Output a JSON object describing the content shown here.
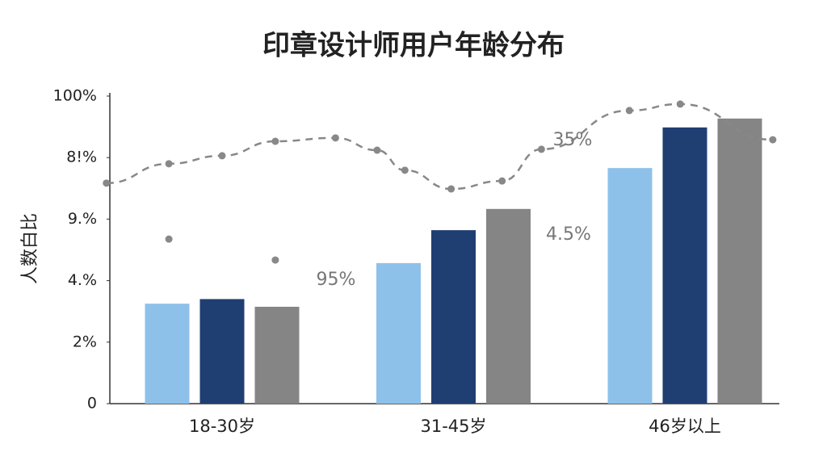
{
  "chart_data": {
    "type": "bar",
    "title": "印章设计师用户年龄分布",
    "y_label": "人数白比",
    "categories": [
      "18-30岁",
      "31-45岁",
      "46岁以上"
    ],
    "series": [
      {
        "color": "#8ec1ea",
        "values": [
          32.5,
          45.7,
          76.6
        ]
      },
      {
        "color": "#1f3f73",
        "values": [
          34,
          56.4,
          89.8
        ]
      },
      {
        "color": "#858585",
        "values": [
          31.5,
          63.3,
          92.7
        ]
      }
    ],
    "line": {
      "color": "#888888",
      "dashed": true,
      "x": [
        -0.5,
        -0.23,
        0,
        0.23,
        0.49,
        0.67,
        0.79,
        0.99,
        1.21,
        1.38,
        1.76,
        1.98,
        2.38
      ],
      "values": [
        71.7,
        78,
        80.6,
        85.3,
        86.4,
        82.4,
        75.9,
        69.8,
        72.4,
        82.7,
        95.3,
        97.4,
        85.8
      ]
    },
    "points": {
      "color": "#888888",
      "x": [
        -0.23,
        0.23
      ],
      "values": [
        53.5,
        46.7
      ]
    },
    "annotations": [
      "95%",
      "35%",
      "4.5%"
    ],
    "ylim": [
      0,
      100
    ],
    "yticks": [
      0,
      {
        "value": 20,
        "label": "2%"
      },
      {
        "value": 40,
        "label": "4.%"
      },
      {
        "value": 60,
        "label": "9.%"
      },
      {
        "value": 80,
        "label": "8!%"
      },
      {
        "value": 100,
        "label": "100%"
      }
    ],
    "grid": false
  }
}
